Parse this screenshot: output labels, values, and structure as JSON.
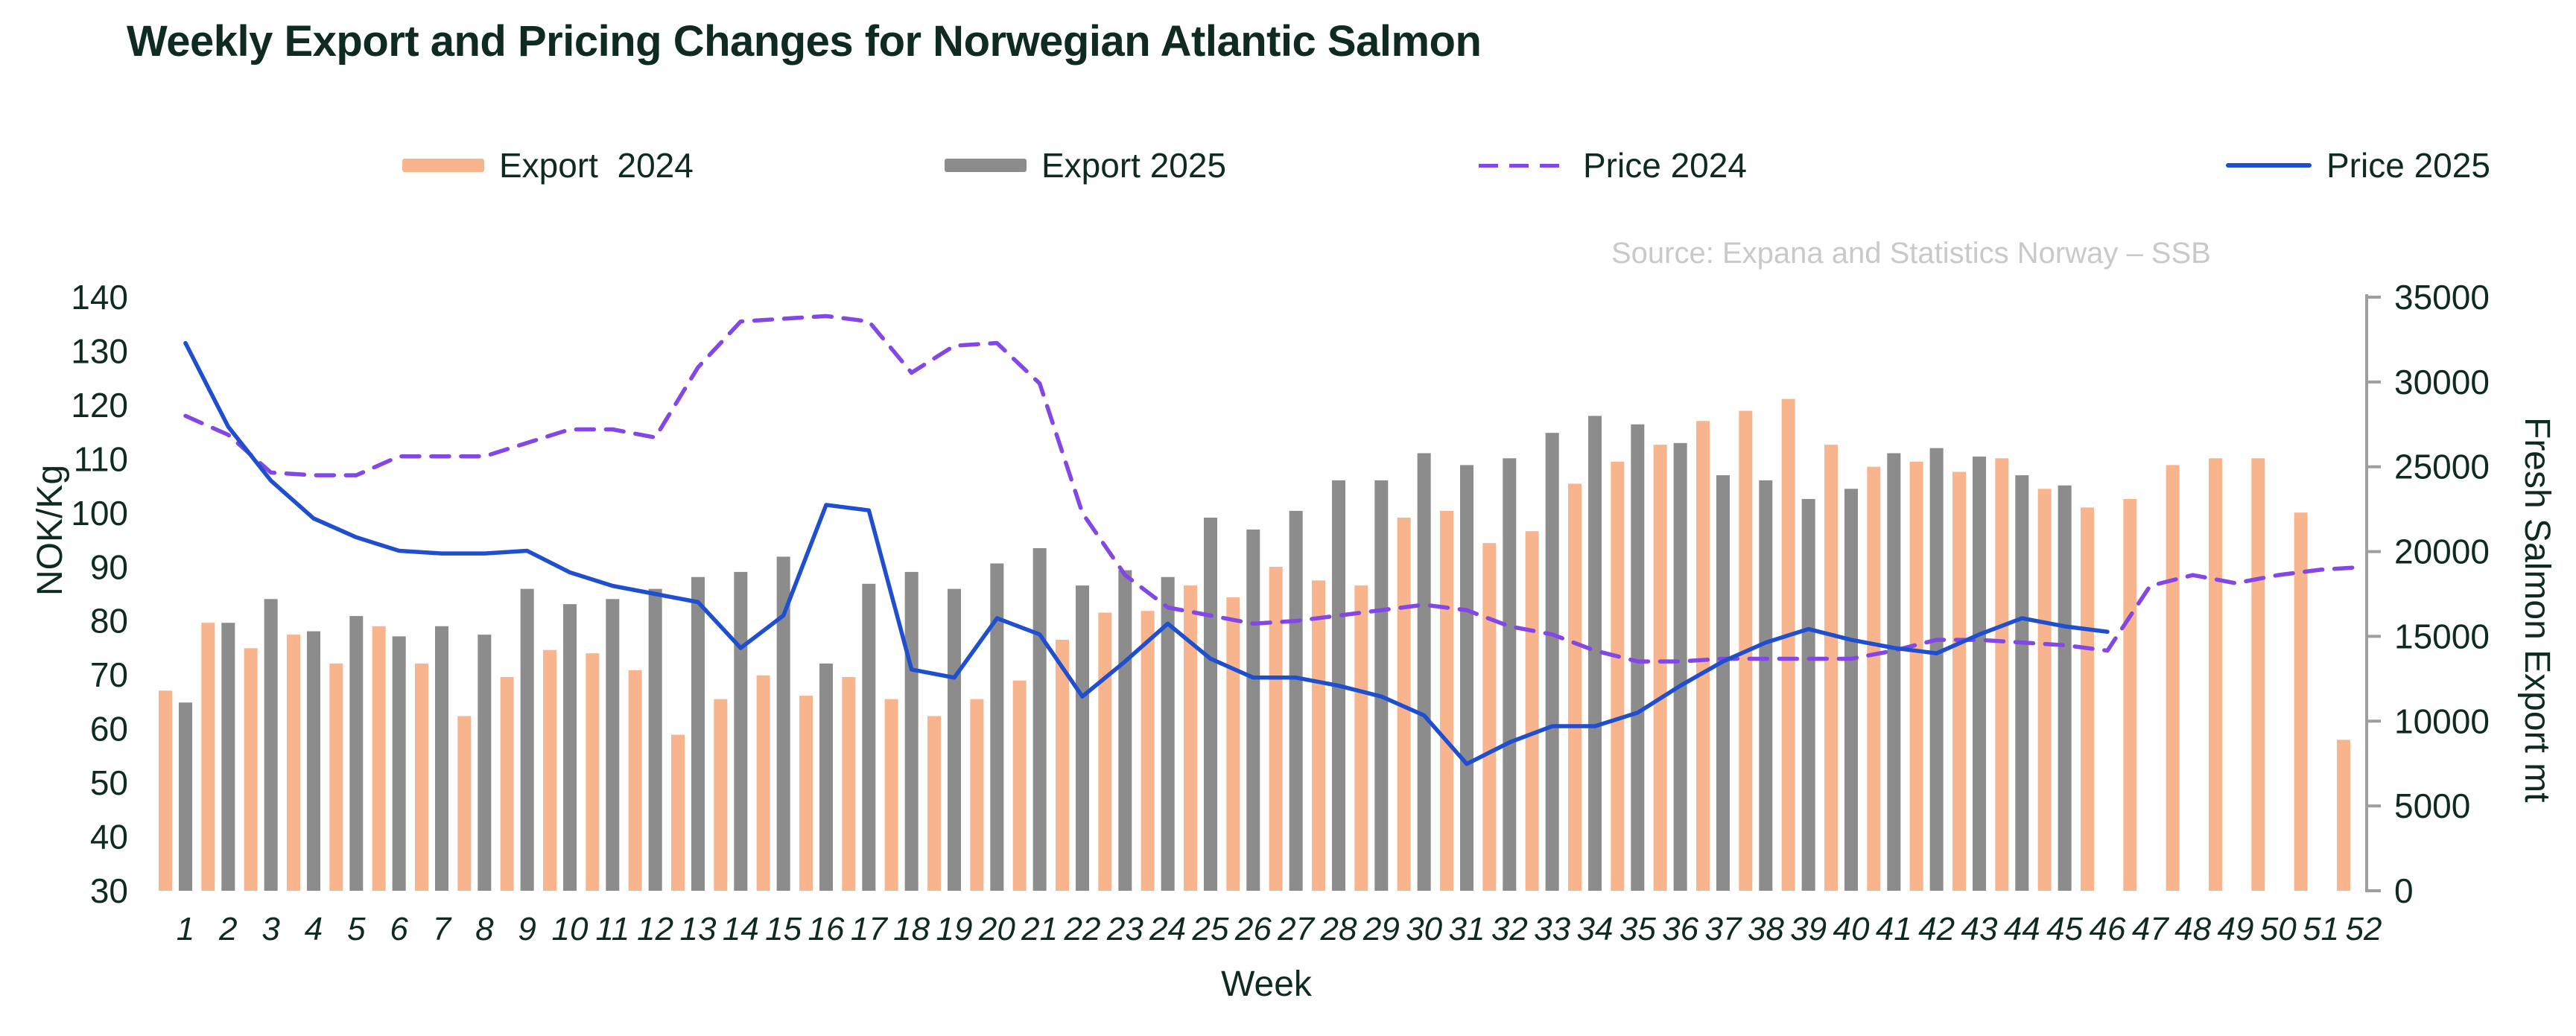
{
  "title": "Weekly Export and Pricing Changes for Norwegian Atlantic Salmon",
  "source_note": "Source: Expana and Statistics Norway – SSB",
  "legend": [
    {
      "label": "Export  2024",
      "swatch": "rect",
      "color": "#F8B48C"
    },
    {
      "label": "Export 2025",
      "swatch": "rect",
      "color": "#8C8C8C"
    },
    {
      "label": "Price 2024",
      "swatch": "dashed-line",
      "color": "#8247E5"
    },
    {
      "label": "Price 2025",
      "swatch": "solid-line",
      "color": "#1F4ECF"
    }
  ],
  "axes": {
    "left_title": "NOK/Kg",
    "right_title": "Fresh Salmon Export mt",
    "x_title": "Week",
    "left_ticks": [
      30,
      40,
      50,
      60,
      70,
      80,
      90,
      100,
      110,
      120,
      130,
      140
    ],
    "right_ticks": [
      0,
      5000,
      10000,
      15000,
      20000,
      25000,
      30000,
      35000
    ],
    "left_range": [
      30,
      140
    ],
    "right_range": [
      0,
      35000
    ]
  },
  "colors": {
    "export_2024": "#F8B48C",
    "export_2025": "#8C8C8C",
    "price_2024": "#8247E5",
    "price_2025": "#1F4ECF",
    "text_dark": "#0E2A22",
    "source_text": "#C9C9C9",
    "axis_line": "#9E9E9E",
    "background": "#FFFFFF"
  },
  "chart_data": {
    "type": "bar",
    "subtype": "grouped-bars-with-lines",
    "title": "Weekly Export and Pricing Changes for Norwegian Atlantic Salmon",
    "xlabel": "Week",
    "ylabel_left": "NOK/Kg",
    "ylabel_right": "Fresh Salmon Export mt",
    "ylim_left": [
      30,
      140
    ],
    "ylim_right": [
      0,
      35000
    ],
    "grid": false,
    "legend_position": "top",
    "x": [
      1,
      2,
      3,
      4,
      5,
      6,
      7,
      8,
      9,
      10,
      11,
      12,
      13,
      14,
      15,
      16,
      17,
      18,
      19,
      20,
      21,
      22,
      23,
      24,
      25,
      26,
      27,
      28,
      29,
      30,
      31,
      32,
      33,
      34,
      35,
      36,
      37,
      38,
      39,
      40,
      41,
      42,
      43,
      44,
      45,
      46,
      47,
      48,
      49,
      50,
      51,
      52
    ],
    "series": [
      {
        "name": "Export  2024",
        "type": "bar",
        "axis": "right",
        "unit": "mt",
        "color": "#F8B48C",
        "values": [
          11800,
          15800,
          14300,
          15100,
          13400,
          15600,
          13400,
          10300,
          12600,
          14200,
          14000,
          13000,
          9200,
          11300,
          12700,
          11500,
          12600,
          11300,
          10300,
          11300,
          12400,
          14800,
          16400,
          16500,
          18000,
          17300,
          19100,
          18300,
          18000,
          22000,
          22400,
          20500,
          21200,
          24000,
          25300,
          26300,
          27700,
          28300,
          29000,
          26300,
          25000,
          25300,
          24700,
          25500,
          23700,
          22600,
          23100,
          25100,
          25500,
          25500,
          22300,
          8900
        ]
      },
      {
        "name": "Export 2025",
        "type": "bar",
        "axis": "right",
        "unit": "mt",
        "color": "#8C8C8C",
        "values": [
          11100,
          15800,
          17200,
          15300,
          16200,
          15000,
          15600,
          15100,
          17800,
          16900,
          17200,
          17800,
          18500,
          18800,
          19700,
          13400,
          18100,
          18800,
          17800,
          19300,
          20200,
          18000,
          18900,
          18500,
          22000,
          21300,
          22400,
          24200,
          24200,
          25800,
          25100,
          25500,
          27000,
          28000,
          27500,
          26400,
          24500,
          24200,
          23100,
          23700,
          25800,
          26100,
          25600,
          24500,
          23900
        ]
      },
      {
        "name": "Price 2024",
        "type": "line",
        "style": "dashed",
        "axis": "left",
        "unit": "NOK/Kg",
        "color": "#8247E5",
        "values": [
          118,
          114.5,
          107.5,
          107,
          107,
          110.5,
          110.5,
          110.5,
          113,
          115.5,
          115.5,
          114,
          127,
          135.5,
          136,
          136.5,
          135.5,
          126,
          131,
          131.5,
          124,
          100,
          88.5,
          82.5,
          81,
          79.5,
          80,
          81,
          82,
          83,
          82,
          79,
          77.5,
          74.5,
          72.5,
          72.5,
          73,
          73,
          73,
          73,
          74.5,
          76.5,
          76.5,
          76,
          75.5,
          74.5,
          86.5,
          88.5,
          87,
          88.5,
          89.5,
          90
        ]
      },
      {
        "name": "Price 2025",
        "type": "line",
        "style": "solid",
        "axis": "left",
        "unit": "NOK/Kg",
        "color": "#1F4ECF",
        "values": [
          131.5,
          116,
          106,
          99,
          95.5,
          93,
          92.5,
          92.5,
          93,
          89,
          86.5,
          85,
          83.5,
          75,
          81,
          101.5,
          100.5,
          71,
          69.5,
          80.5,
          77.5,
          66,
          72.5,
          79.5,
          73,
          69.5,
          69.5,
          68,
          66,
          62.5,
          53.5,
          57.5,
          60.5,
          60.5,
          63,
          68,
          72.5,
          76,
          78.5,
          76.5,
          75,
          74,
          77.5,
          80.5,
          79,
          78
        ]
      }
    ]
  }
}
